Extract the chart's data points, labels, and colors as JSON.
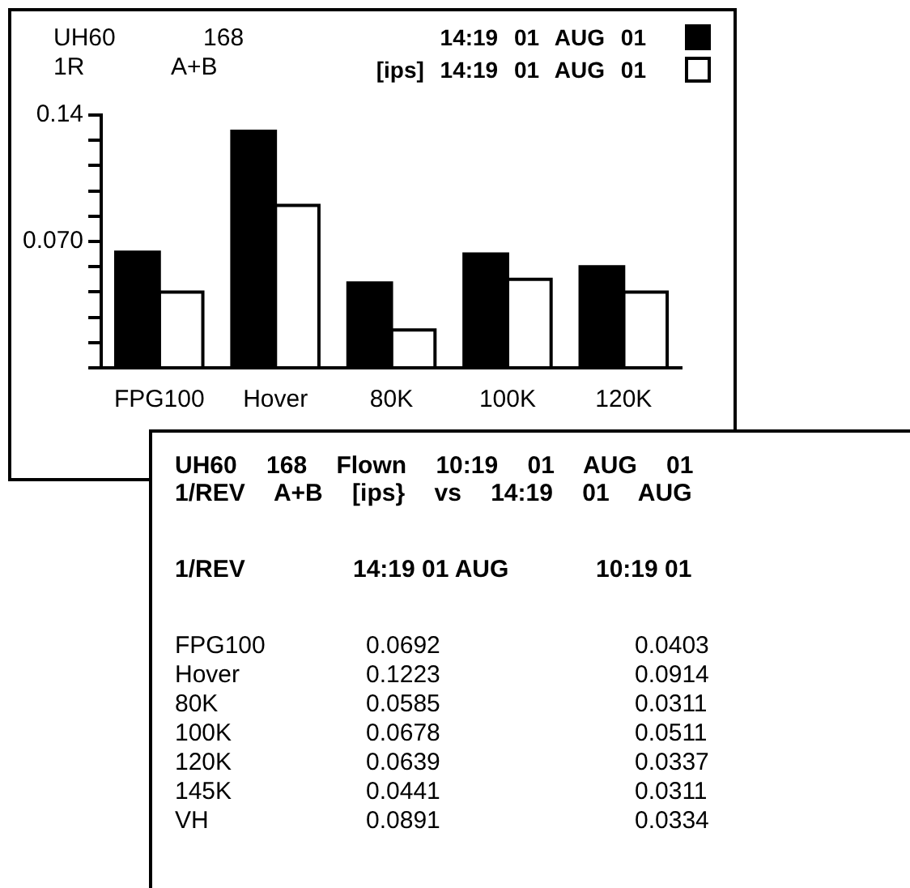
{
  "chart_data": [
    {
      "type": "bar",
      "title": "UH60 168",
      "subtitle": "1R A+B",
      "categories": [
        "FPG100",
        "Hover",
        "80K",
        "100K",
        "120K"
      ],
      "series": [
        {
          "name": "14:19 01 AUG 01",
          "color": "#000000",
          "values": [
            0.064,
            0.131,
            0.047,
            0.063,
            0.056
          ]
        },
        {
          "name": "[ips] 14:19 01 AUG 01",
          "color": "#ffffff",
          "values": [
            0.042,
            0.09,
            0.021,
            0.049,
            0.042
          ]
        }
      ],
      "ylim": [
        0,
        0.14
      ],
      "yticks": [
        {
          "value": 0,
          "label": null
        },
        {
          "value": 0.014,
          "label": null
        },
        {
          "value": 0.028,
          "label": null
        },
        {
          "value": 0.042,
          "label": null
        },
        {
          "value": 0.056,
          "label": null
        },
        {
          "value": 0.07,
          "label": "0.070"
        },
        {
          "value": 0.084,
          "label": null
        },
        {
          "value": 0.098,
          "label": null
        },
        {
          "value": 0.112,
          "label": null
        },
        {
          "value": 0.126,
          "label": null
        },
        0.14
      ],
      "legend": "top right"
    },
    {
      "type": "other",
      "title": "UH60 168 Flown 10:19 01 AUG 01",
      "subtitle": "1/REV A+B [ips} vs 14:19 01 AUG",
      "legend_title": "1/REV",
      "categories": [
        "FPG100",
        "Hover",
        "80K",
        "100K",
        "120K",
        "145K",
        "VH"
      ],
      "series": [
        {
          "name": "14:19 01 AUG",
          "values": [
            0.0692,
            0.1223,
            0.0585,
            0.0678,
            0.0639,
            0.0441,
            0.0891
          ]
        },
        {
          "name": "10:19 01",
          "values": [
            0.0403,
            0.0914,
            0.0311,
            0.0511,
            0.0337,
            0.0311,
            0.0334
          ]
        }
      ],
      "data_labels": true
    }
  ]
}
